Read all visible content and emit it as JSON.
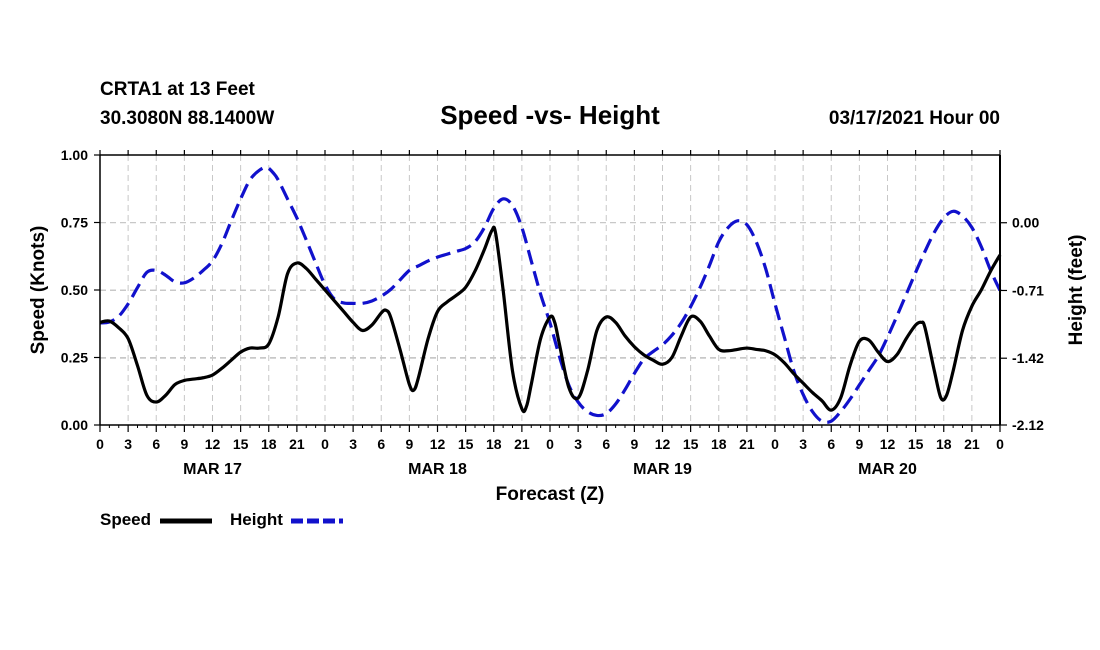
{
  "chart_data": {
    "type": "line",
    "header": {
      "station": "CRTA1 at 13 Feet",
      "location": "30.3080N 88.1400W",
      "title": "Speed -vs- Height",
      "datetime": "03/17/2021 Hour 00"
    },
    "xlabel": "Forecast (Z)",
    "ylabel_left": "Speed (Knots)",
    "ylabel_right": "Height (feet)",
    "x_range_hours": [
      0,
      96
    ],
    "x_ticks": [
      {
        "h": 0,
        "label": "0"
      },
      {
        "h": 3,
        "label": "3"
      },
      {
        "h": 6,
        "label": "6"
      },
      {
        "h": 9,
        "label": "9"
      },
      {
        "h": 12,
        "label": "12"
      },
      {
        "h": 15,
        "label": "15"
      },
      {
        "h": 18,
        "label": "18"
      },
      {
        "h": 21,
        "label": "21"
      },
      {
        "h": 24,
        "label": "0"
      },
      {
        "h": 27,
        "label": "3"
      },
      {
        "h": 30,
        "label": "6"
      },
      {
        "h": 33,
        "label": "9"
      },
      {
        "h": 36,
        "label": "12"
      },
      {
        "h": 39,
        "label": "15"
      },
      {
        "h": 42,
        "label": "18"
      },
      {
        "h": 45,
        "label": "21"
      },
      {
        "h": 48,
        "label": "0"
      },
      {
        "h": 51,
        "label": "3"
      },
      {
        "h": 54,
        "label": "6"
      },
      {
        "h": 57,
        "label": "9"
      },
      {
        "h": 60,
        "label": "12"
      },
      {
        "h": 63,
        "label": "15"
      },
      {
        "h": 66,
        "label": "18"
      },
      {
        "h": 69,
        "label": "21"
      },
      {
        "h": 72,
        "label": "0"
      },
      {
        "h": 75,
        "label": "3"
      },
      {
        "h": 78,
        "label": "6"
      },
      {
        "h": 81,
        "label": "9"
      },
      {
        "h": 84,
        "label": "12"
      },
      {
        "h": 87,
        "label": "15"
      },
      {
        "h": 90,
        "label": "18"
      },
      {
        "h": 93,
        "label": "21"
      },
      {
        "h": 96,
        "label": "0"
      }
    ],
    "day_labels": [
      {
        "h": 12,
        "label": "MAR 17"
      },
      {
        "h": 36,
        "label": "MAR 18"
      },
      {
        "h": 60,
        "label": "MAR 19"
      },
      {
        "h": 84,
        "label": "MAR 20"
      }
    ],
    "y_left": {
      "range": [
        0,
        1
      ],
      "ticks": [
        {
          "v": 0,
          "label": "0.00"
        },
        {
          "v": 0.25,
          "label": "0.25"
        },
        {
          "v": 0.5,
          "label": "0.50"
        },
        {
          "v": 0.75,
          "label": "0.75"
        },
        {
          "v": 1,
          "label": "1.00"
        }
      ]
    },
    "y_right": {
      "range": [
        -2.12,
        0.71
      ],
      "ticks": [
        {
          "v": -2.12,
          "label": "-2.12"
        },
        {
          "v": -1.42,
          "label": "-1.42"
        },
        {
          "v": -0.71,
          "label": "-0.71"
        },
        {
          "v": 0,
          "label": "0.00"
        }
      ]
    },
    "series": [
      {
        "name": "Speed",
        "axis": "left",
        "color": "#000000",
        "style": "solid",
        "points": [
          [
            0,
            0.38
          ],
          [
            1,
            0.385
          ],
          [
            2,
            0.36
          ],
          [
            3,
            0.32
          ],
          [
            4,
            0.22
          ],
          [
            5,
            0.11
          ],
          [
            6,
            0.085
          ],
          [
            7,
            0.11
          ],
          [
            8,
            0.15
          ],
          [
            9,
            0.165
          ],
          [
            10,
            0.17
          ],
          [
            11,
            0.175
          ],
          [
            12,
            0.185
          ],
          [
            13,
            0.21
          ],
          [
            14,
            0.24
          ],
          [
            15,
            0.27
          ],
          [
            16,
            0.285
          ],
          [
            17,
            0.285
          ],
          [
            18,
            0.3
          ],
          [
            19,
            0.4
          ],
          [
            20,
            0.56
          ],
          [
            21,
            0.6
          ],
          [
            22,
            0.58
          ],
          [
            23,
            0.54
          ],
          [
            24,
            0.5
          ],
          [
            25,
            0.46
          ],
          [
            26,
            0.42
          ],
          [
            27,
            0.38
          ],
          [
            28,
            0.35
          ],
          [
            29,
            0.37
          ],
          [
            30,
            0.415
          ],
          [
            30.5,
            0.425
          ],
          [
            31,
            0.4
          ],
          [
            32,
            0.28
          ],
          [
            33,
            0.15
          ],
          [
            33.5,
            0.13
          ],
          [
            34,
            0.18
          ],
          [
            35,
            0.32
          ],
          [
            36,
            0.42
          ],
          [
            37,
            0.455
          ],
          [
            38,
            0.48
          ],
          [
            39,
            0.51
          ],
          [
            40,
            0.57
          ],
          [
            41,
            0.65
          ],
          [
            41.8,
            0.72
          ],
          [
            42.2,
            0.71
          ],
          [
            43,
            0.5
          ],
          [
            44,
            0.2
          ],
          [
            45,
            0.06
          ],
          [
            45.5,
            0.07
          ],
          [
            46,
            0.15
          ],
          [
            47,
            0.32
          ],
          [
            48,
            0.4
          ],
          [
            48.5,
            0.38
          ],
          [
            49,
            0.3
          ],
          [
            50,
            0.14
          ],
          [
            51,
            0.1
          ],
          [
            52,
            0.2
          ],
          [
            53,
            0.35
          ],
          [
            54,
            0.4
          ],
          [
            55,
            0.38
          ],
          [
            56,
            0.33
          ],
          [
            57,
            0.29
          ],
          [
            58,
            0.26
          ],
          [
            59,
            0.24
          ],
          [
            60,
            0.225
          ],
          [
            61,
            0.25
          ],
          [
            62,
            0.33
          ],
          [
            63,
            0.4
          ],
          [
            64,
            0.385
          ],
          [
            65,
            0.33
          ],
          [
            66,
            0.28
          ],
          [
            67,
            0.275
          ],
          [
            68,
            0.28
          ],
          [
            69,
            0.285
          ],
          [
            70,
            0.28
          ],
          [
            71,
            0.275
          ],
          [
            72,
            0.26
          ],
          [
            73,
            0.23
          ],
          [
            74,
            0.19
          ],
          [
            75,
            0.155
          ],
          [
            76,
            0.12
          ],
          [
            77,
            0.09
          ],
          [
            78,
            0.055
          ],
          [
            79,
            0.1
          ],
          [
            80,
            0.22
          ],
          [
            81,
            0.31
          ],
          [
            82,
            0.315
          ],
          [
            83,
            0.27
          ],
          [
            84,
            0.235
          ],
          [
            85,
            0.26
          ],
          [
            86,
            0.32
          ],
          [
            87,
            0.37
          ],
          [
            87.6,
            0.38
          ],
          [
            88,
            0.36
          ],
          [
            89,
            0.2
          ],
          [
            89.7,
            0.1
          ],
          [
            90.3,
            0.11
          ],
          [
            91,
            0.2
          ],
          [
            92,
            0.35
          ],
          [
            93,
            0.44
          ],
          [
            94,
            0.5
          ],
          [
            95,
            0.57
          ],
          [
            96,
            0.63
          ]
        ]
      },
      {
        "name": "Height",
        "axis": "right",
        "color": "#1111cc",
        "style": "dashed",
        "points": [
          [
            0,
            -1.05
          ],
          [
            1,
            -1.04
          ],
          [
            2,
            -0.98
          ],
          [
            3,
            -0.85
          ],
          [
            4,
            -0.68
          ],
          [
            5,
            -0.52
          ],
          [
            6,
            -0.5
          ],
          [
            7,
            -0.55
          ],
          [
            8,
            -0.62
          ],
          [
            9,
            -0.63
          ],
          [
            10,
            -0.58
          ],
          [
            11,
            -0.5
          ],
          [
            12,
            -0.4
          ],
          [
            13,
            -0.22
          ],
          [
            14,
            0.02
          ],
          [
            15,
            0.25
          ],
          [
            16,
            0.45
          ],
          [
            17,
            0.55
          ],
          [
            17.8,
            0.58
          ],
          [
            18.5,
            0.52
          ],
          [
            19,
            0.45
          ],
          [
            20,
            0.25
          ],
          [
            21,
            0.05
          ],
          [
            22,
            -0.18
          ],
          [
            23,
            -0.42
          ],
          [
            24,
            -0.65
          ],
          [
            25,
            -0.8
          ],
          [
            26,
            -0.84
          ],
          [
            27,
            -0.845
          ],
          [
            28,
            -0.845
          ],
          [
            29,
            -0.82
          ],
          [
            30,
            -0.77
          ],
          [
            31,
            -0.7
          ],
          [
            32,
            -0.6
          ],
          [
            33,
            -0.5
          ],
          [
            34,
            -0.45
          ],
          [
            35,
            -0.4
          ],
          [
            36,
            -0.36
          ],
          [
            37,
            -0.33
          ],
          [
            38,
            -0.3
          ],
          [
            39,
            -0.27
          ],
          [
            40,
            -0.2
          ],
          [
            41,
            -0.05
          ],
          [
            42,
            0.15
          ],
          [
            43,
            0.25
          ],
          [
            44,
            0.18
          ],
          [
            45,
            -0.05
          ],
          [
            46,
            -0.4
          ],
          [
            47,
            -0.75
          ],
          [
            48,
            -1.05
          ],
          [
            49,
            -1.4
          ],
          [
            50,
            -1.7
          ],
          [
            51,
            -1.88
          ],
          [
            52,
            -1.98
          ],
          [
            53,
            -2.02
          ],
          [
            54,
            -2.0
          ],
          [
            55,
            -1.9
          ],
          [
            56,
            -1.75
          ],
          [
            57,
            -1.58
          ],
          [
            58,
            -1.43
          ],
          [
            59,
            -1.35
          ],
          [
            60,
            -1.28
          ],
          [
            61,
            -1.18
          ],
          [
            62,
            -1.05
          ],
          [
            63,
            -0.88
          ],
          [
            64,
            -0.68
          ],
          [
            65,
            -0.45
          ],
          [
            66,
            -0.2
          ],
          [
            67,
            -0.05
          ],
          [
            68,
            0.02
          ],
          [
            69,
            -0.02
          ],
          [
            70,
            -0.2
          ],
          [
            71,
            -0.48
          ],
          [
            72,
            -0.85
          ],
          [
            73,
            -1.2
          ],
          [
            74,
            -1.55
          ],
          [
            75,
            -1.8
          ],
          [
            76,
            -1.98
          ],
          [
            77,
            -2.08
          ],
          [
            78,
            -2.08
          ],
          [
            79,
            -1.98
          ],
          [
            80,
            -1.85
          ],
          [
            81,
            -1.7
          ],
          [
            82,
            -1.55
          ],
          [
            83,
            -1.4
          ],
          [
            84,
            -1.2
          ],
          [
            85,
            -0.98
          ],
          [
            86,
            -0.75
          ],
          [
            87,
            -0.52
          ],
          [
            88,
            -0.3
          ],
          [
            89,
            -0.1
          ],
          [
            90,
            0.05
          ],
          [
            91,
            0.12
          ],
          [
            92,
            0.07
          ],
          [
            93,
            -0.05
          ],
          [
            94,
            -0.25
          ],
          [
            95,
            -0.5
          ],
          [
            96,
            -0.71
          ]
        ]
      }
    ],
    "legend": [
      {
        "label": "Speed",
        "color": "#000000",
        "style": "solid"
      },
      {
        "label": "Height",
        "color": "#1111cc",
        "style": "dashed"
      }
    ],
    "grid": true
  }
}
